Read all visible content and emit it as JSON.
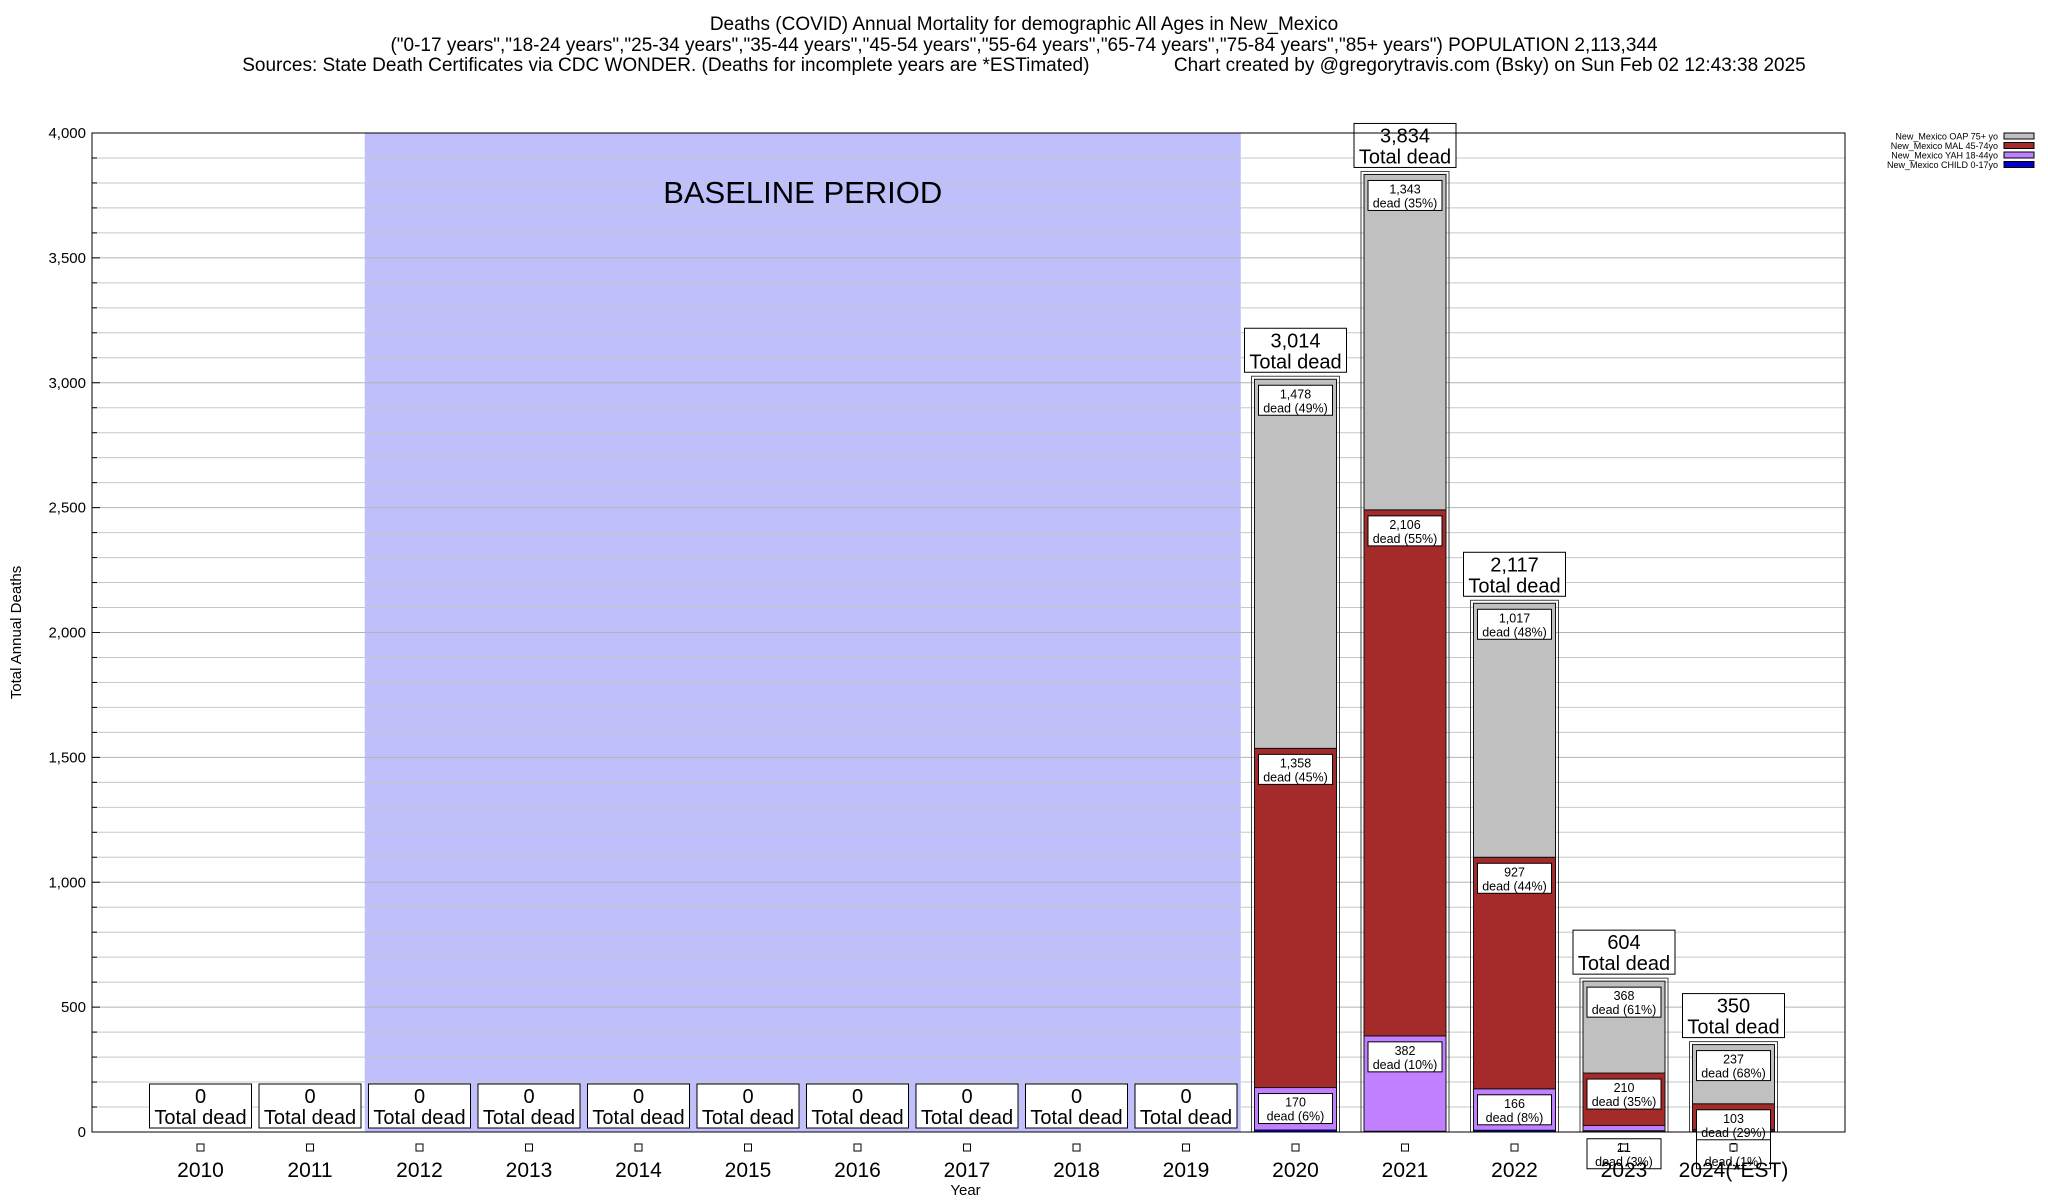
{
  "header": {
    "line1": "Deaths (COVID) Annual Mortality for demographic All Ages in New_Mexico",
    "line2": "(\"0-17 years\",\"18-24 years\",\"25-34 years\",\"35-44 years\",\"45-54 years\",\"55-64 years\",\"65-74 years\",\"75-84 years\",\"85+ years\") POPULATION 2,113,344",
    "line3": "Sources: State Death Certificates via CDC WONDER. (Deaths for incomplete years are *ESTimated)                Chart created by @gregorytravis.com (Bsky) on Sun Feb 02 12:43:38 2025"
  },
  "chart_data": {
    "type": "bar",
    "stacked": true,
    "xlabel": "Year",
    "ylabel": "Total Annual Deaths",
    "ylim": [
      0,
      4000
    ],
    "yticks": [
      0,
      500,
      1000,
      1500,
      2000,
      2500,
      3000,
      3500,
      4000
    ],
    "ytick_labels": [
      "0",
      "500",
      "1,000",
      "1,500",
      "2,000",
      "2,500",
      "3,000",
      "3,500",
      "4,000"
    ],
    "grid": true,
    "legend_position": "top-right",
    "categories": [
      "2010",
      "2011",
      "2012",
      "2013",
      "2014",
      "2015",
      "2016",
      "2017",
      "2018",
      "2019",
      "2020",
      "2021",
      "2022",
      "2023",
      "2024(*EST)"
    ],
    "baseline_label": "BASELINE PERIOD",
    "baseline_range": [
      "2012",
      "2019"
    ],
    "baseline_color": "#bfbffc",
    "total_suffix": "Total dead",
    "totals": [
      "0",
      "0",
      "0",
      "0",
      "0",
      "0",
      "0",
      "0",
      "0",
      "0",
      "3,014",
      "3,834",
      "2,117",
      "604",
      "350"
    ],
    "series": [
      {
        "name": "New_Mexico CHILD 0-17yo",
        "color": "#0000c8",
        "values": [
          0,
          0,
          0,
          0,
          0,
          0,
          0,
          0,
          0,
          0,
          8,
          3,
          7,
          5,
          5
        ],
        "labels": []
      },
      {
        "name": "New_Mexico YAH 18-44yo",
        "color": "#c080ff",
        "values": [
          0,
          0,
          0,
          0,
          0,
          0,
          0,
          0,
          0,
          0,
          170,
          382,
          166,
          21,
          5
        ],
        "labels": [
          "",
          "",
          "",
          "",
          "",
          "",
          "",
          "",
          "",
          "",
          "170\ndead (6%)",
          "382\ndead (10%)",
          "166\ndead (8%)",
          "21\ndead (3%)",
          "5\ndead (1%)"
        ]
      },
      {
        "name": "New_Mexico MAL 45-74yo",
        "color": "#a52a2a",
        "values": [
          0,
          0,
          0,
          0,
          0,
          0,
          0,
          0,
          0,
          0,
          1358,
          2106,
          927,
          210,
          103
        ],
        "labels": [
          "",
          "",
          "",
          "",
          "",
          "",
          "",
          "",
          "",
          "",
          "1,358\ndead (45%)",
          "2,106\ndead (55%)",
          "927\ndead (44%)",
          "210\ndead (35%)",
          "103\ndead (29%)"
        ]
      },
      {
        "name": "New_Mexico OAP 75+ yo",
        "color": "#c0c0c0",
        "values": [
          0,
          0,
          0,
          0,
          0,
          0,
          0,
          0,
          0,
          0,
          1478,
          1343,
          1017,
          368,
          237
        ],
        "labels": [
          "",
          "",
          "",
          "",
          "",
          "",
          "",
          "",
          "",
          "",
          "1,478\ndead (49%)",
          "1,343\ndead (35%)",
          "1,017\ndead (48%)",
          "368\ndead (61%)",
          "237\ndead (68%)"
        ]
      }
    ]
  }
}
